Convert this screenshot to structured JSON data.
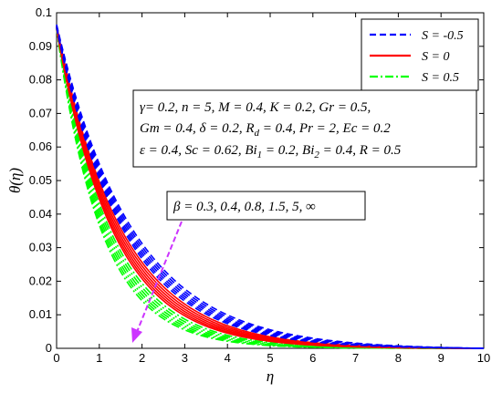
{
  "chart_data": {
    "type": "line",
    "xlabel": "η",
    "ylabel": "θ(η)",
    "xlim": [
      0,
      10
    ],
    "ylim": [
      0,
      0.1
    ],
    "x_ticks": [
      "0",
      "1",
      "2",
      "3",
      "4",
      "5",
      "6",
      "7",
      "8",
      "9",
      "10"
    ],
    "y_ticks": [
      "0",
      "0.01",
      "0.02",
      "0.03",
      "0.04",
      "0.05",
      "0.06",
      "0.07",
      "0.08",
      "0.09",
      "0.1"
    ],
    "grid": false,
    "legend_position": "top-right",
    "legend": [
      {
        "label": "S = -0.5",
        "color": "#0000ff",
        "dash": "dashed"
      },
      {
        "label": "S = 0",
        "color": "#ff0000",
        "dash": "solid"
      },
      {
        "label": "S = 0.5",
        "color": "#00ff00",
        "dash": "dashdot"
      }
    ],
    "beta_values": [
      0.3,
      0.4,
      0.8,
      1.5,
      5,
      "∞"
    ],
    "series": [
      {
        "group": "S = -0.5",
        "color": "#0000ff",
        "dash": "dashed",
        "theta0": [
          0.0965,
          0.0963,
          0.0961,
          0.0959,
          0.0957,
          0.0955
        ],
        "decay": [
          0.56,
          0.575,
          0.59,
          0.605,
          0.62,
          0.635
        ]
      },
      {
        "group": "S = 0",
        "color": "#ff0000",
        "dash": "solid",
        "theta0": [
          0.0962,
          0.096,
          0.0958,
          0.0956,
          0.0954,
          0.0952
        ],
        "decay": [
          0.66,
          0.68,
          0.7,
          0.72,
          0.74,
          0.76
        ]
      },
      {
        "group": "S = 0.5",
        "color": "#00ff00",
        "dash": "dashdot",
        "theta0": [
          0.096,
          0.0958,
          0.0956,
          0.0954,
          0.0952,
          0.095
        ],
        "decay": [
          0.8,
          0.83,
          0.86,
          0.89,
          0.92,
          0.95
        ]
      }
    ],
    "parameters_box": {
      "line1": "γ= 0.2, n = 5, M = 0.4, K = 0.2, Gr = 0.5,",
      "line2_a": "Gm = 0.4, δ = 0.2, R",
      "line2_sub": "d",
      "line2_b": " = 0.4, Pr = 2, Ec = 0.2",
      "line3_a": "ε = 0.4, Sc = 0.62, Bi",
      "line3_sub1": "1",
      "line3_b": " = 0.2, Bi",
      "line3_sub2": "2",
      "line3_c": " = 0.4, R = 0.5"
    },
    "beta_annotation": "β = 0.3, 0.4, 0.8, 1.5, 5, ∞",
    "arrow_color": "#cc33ff"
  }
}
